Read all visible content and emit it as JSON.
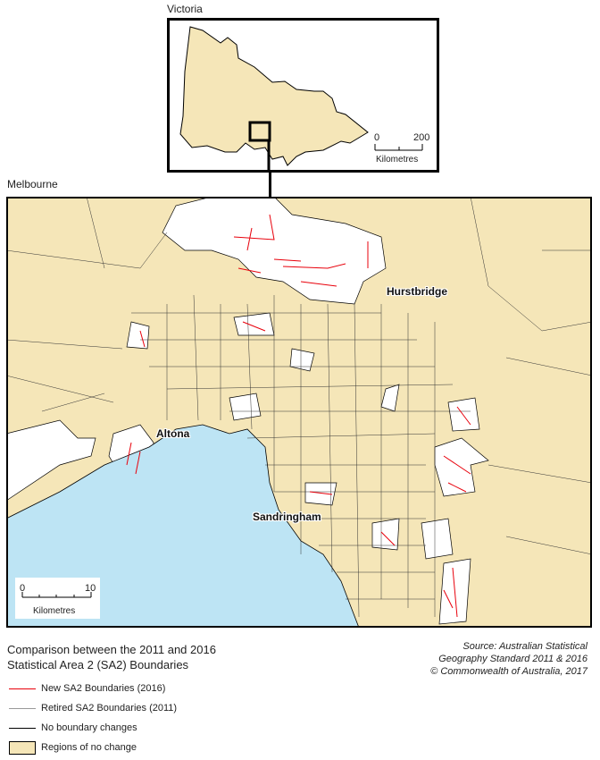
{
  "inset": {
    "title": "Victoria",
    "scale": {
      "start": "0",
      "end": "200",
      "unit": "Kilometres"
    }
  },
  "main_map": {
    "title": "Melbourne",
    "places": [
      "Hurstbridge",
      "Altona",
      "Sandringham"
    ],
    "scale": {
      "start": "0",
      "end": "10",
      "unit": "Kilometres"
    }
  },
  "legend": {
    "title_line1": "Comparison between the 2011 and 2016",
    "title_line2": "Statistical Area 2 (SA2) Boundaries",
    "items": [
      {
        "label": "New SA2 Boundaries (2016)",
        "color": "#e8000b"
      },
      {
        "label": "Retired SA2 Boundaries (2011)",
        "color": "#999999"
      },
      {
        "label": "No boundary changes",
        "color": "#000000"
      },
      {
        "label": "Regions of no change",
        "color": "#f5e6b8"
      }
    ]
  },
  "source": {
    "line1": "Source: Australian Statistical",
    "line2": "Geography Standard 2011 & 2016",
    "line3": "© Commonwealth of Australia, 2017"
  },
  "colors": {
    "land": "#f5e6b8",
    "changed": "#ffffff",
    "water": "#bde4f4",
    "new": "#e8000b"
  }
}
